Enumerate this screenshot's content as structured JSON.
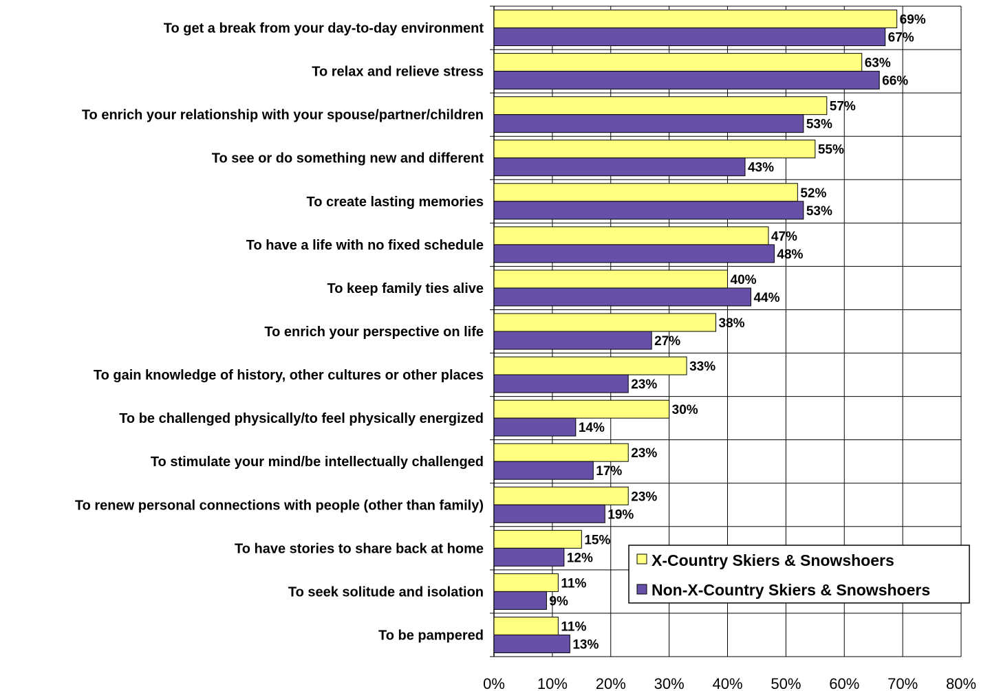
{
  "chart_data": {
    "type": "bar",
    "orientation": "horizontal",
    "categories": [
      "To get a break from your day-to-day environment",
      "To relax and relieve stress",
      "To enrich your relationship with your spouse/partner/children",
      "To see or do something new and different",
      "To create lasting memories",
      "To have a life with no fixed schedule",
      "To keep family ties alive",
      "To enrich your perspective on life",
      "To gain knowledge of history, other cultures or other places",
      "To be challenged physically/to feel physically energized",
      "To stimulate your mind/be intellectually challenged",
      "To renew personal connections with people (other than family)",
      "To have stories to share back at home",
      "To seek solitude and isolation",
      "To be pampered"
    ],
    "series": [
      {
        "name": "X-Country Skiers & Snowshoers",
        "color": "#FFFF80",
        "values": [
          69,
          63,
          57,
          55,
          52,
          47,
          40,
          38,
          33,
          30,
          23,
          23,
          15,
          11,
          11
        ],
        "labels": [
          "69%",
          "63%",
          "57%",
          "55%",
          "52%",
          "47%",
          "40%",
          "38%",
          "33%",
          "30%",
          "23%",
          "23%",
          "15%",
          "11%",
          "11%"
        ]
      },
      {
        "name": "Non-X-Country Skiers & Snowshoers",
        "color": "#6650A8",
        "values": [
          67,
          66,
          53,
          43,
          53,
          48,
          44,
          27,
          23,
          14,
          17,
          19,
          12,
          9,
          13
        ],
        "labels": [
          "67%",
          "66%",
          "53%",
          "43%",
          "53%",
          "48%",
          "44%",
          "27%",
          "23%",
          "14%",
          "17%",
          "19%",
          "12%",
          "9%",
          "13%"
        ]
      }
    ],
    "xlim": [
      0,
      80
    ],
    "xticks": [
      "0%",
      "10%",
      "20%",
      "30%",
      "40%",
      "50%",
      "60%",
      "70%",
      "80%"
    ],
    "grid": true,
    "legend_position": "bottom-right"
  }
}
